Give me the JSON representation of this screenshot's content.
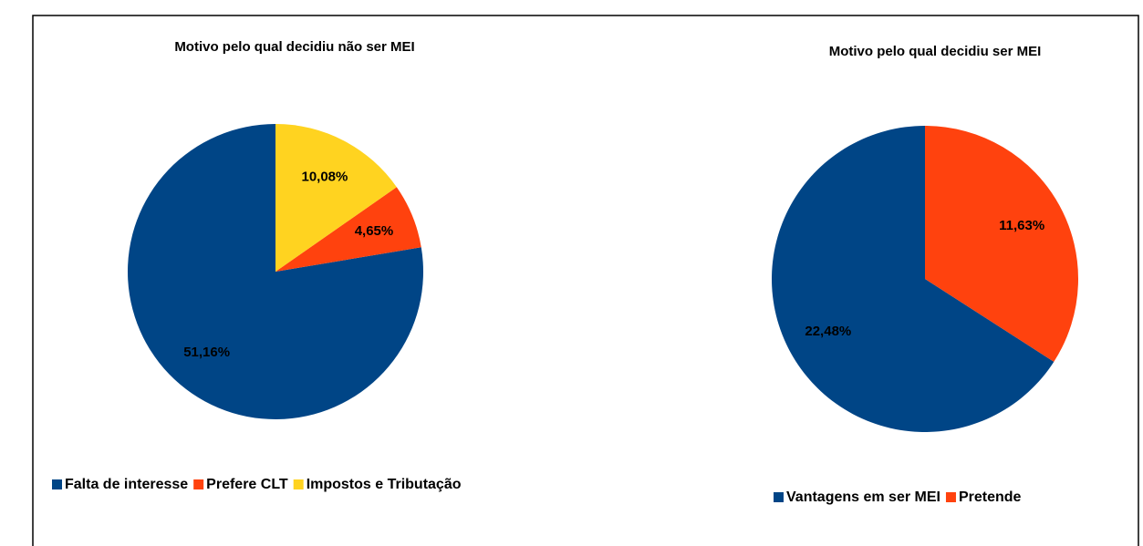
{
  "chart_data": [
    {
      "type": "pie",
      "title": "Motivo pelo qual decidiu não ser MEI",
      "categories": [
        "Falta de interesse",
        "Prefere CLT",
        "Impostos e Tributação"
      ],
      "values": [
        51.16,
        4.65,
        10.08
      ],
      "value_labels": [
        "51,16%",
        "4,65%",
        "10,08%"
      ],
      "colors": [
        "#004586",
        "#ff420e",
        "#ffd320"
      ]
    },
    {
      "type": "pie",
      "title": "Motivo pelo qual decidiu ser MEI",
      "categories": [
        "Vantagens em ser MEI",
        "Pretende"
      ],
      "values": [
        22.48,
        11.63
      ],
      "value_labels": [
        "22,48%",
        "11,63%"
      ],
      "colors": [
        "#004586",
        "#ff420e"
      ]
    }
  ]
}
